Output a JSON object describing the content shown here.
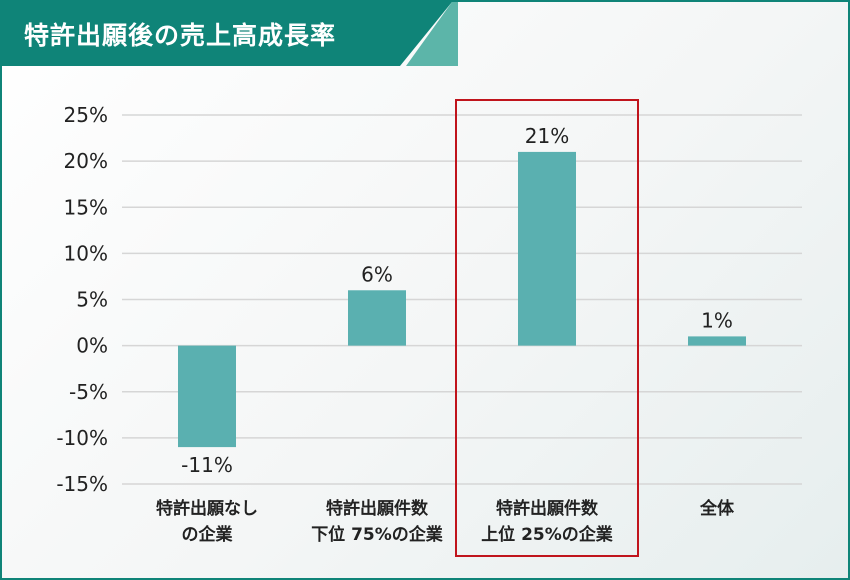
{
  "title": "特許出願後の売上高成長率",
  "colors": {
    "accent": "#0f8478",
    "accent_light": "#5cb5a9",
    "bar": "#5ab0b0",
    "grid": "#d6d6d6",
    "highlight": "#c0141c"
  },
  "chart_data": {
    "type": "bar",
    "title": "特許出願後の売上高成長率",
    "categories": [
      [
        "特許出願なし",
        "の企業"
      ],
      [
        "特許出願件数",
        "下位 75%の企業"
      ],
      [
        "特許出願件数",
        "上位 25%の企業"
      ],
      [
        "全体"
      ]
    ],
    "values": [
      -11,
      6,
      21,
      1
    ],
    "value_labels": [
      "-11%",
      "6%",
      "21%",
      "1%"
    ],
    "yticks": [
      25,
      20,
      15,
      10,
      5,
      0,
      -5,
      -10,
      -15
    ],
    "ytick_labels": [
      "25%",
      "20%",
      "15%",
      "10%",
      "5%",
      "0%",
      "-5%",
      "-10%",
      "-15%"
    ],
    "ylim": [
      -15,
      25
    ],
    "grid": true,
    "highlighted_category_index": 2
  }
}
